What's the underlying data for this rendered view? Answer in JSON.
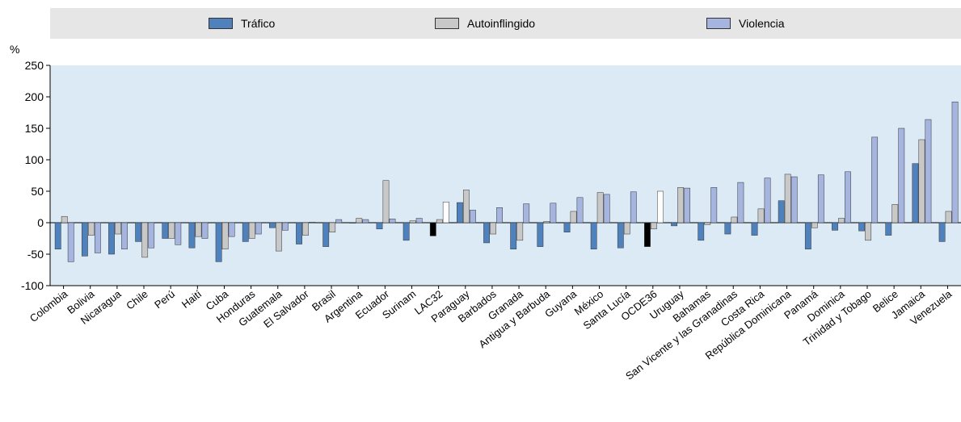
{
  "chart_data": {
    "type": "bar",
    "ylabel": "%",
    "ylim": [
      -100,
      250
    ],
    "yticks": [
      -100,
      -50,
      0,
      50,
      100,
      150,
      200,
      250
    ],
    "legend_position": "top",
    "grid": false,
    "categories": [
      "Colombia",
      "Bolivia",
      "Nicaragua",
      "Chile",
      "Perú",
      "Haití",
      "Cuba",
      "Honduras",
      "Guatemala",
      "El Salvador",
      "Brasil",
      "Argentina",
      "Ecuador",
      "Surinam",
      "LAC32",
      "Paraguay",
      "Barbados",
      "Granada",
      "Antigua y Barbuda",
      "Guyana",
      "México",
      "Santa Lucía",
      "OCDE36",
      "Uruguay",
      "Bahamas",
      "San Vicente y las Granadinas",
      "Costa Rica",
      "República Dominicana",
      "Panamá",
      "Dominica",
      "Trinidad y Tobago",
      "Belice",
      "Jamaica",
      "Venezuela"
    ],
    "series": [
      {
        "name": "Tráfico",
        "color": "#4f81bd",
        "values": [
          -42,
          -53,
          -50,
          -30,
          -25,
          -40,
          -62,
          -30,
          -8,
          -34,
          -38,
          0,
          -10,
          -28,
          -21,
          32,
          -32,
          -42,
          -38,
          -15,
          -42,
          -40,
          -38,
          -5,
          -28,
          -18,
          -20,
          35,
          -42,
          -12,
          -13,
          -20,
          94,
          -30
        ]
      },
      {
        "name": "Autoinflingido",
        "color": "#c8c8c8",
        "values": [
          10,
          -20,
          -18,
          -55,
          -25,
          -22,
          -42,
          -25,
          -45,
          -20,
          -15,
          7,
          67,
          3,
          5,
          52,
          -18,
          -28,
          2,
          18,
          48,
          -18,
          -10,
          56,
          -3,
          9,
          22,
          77,
          -8,
          7,
          -28,
          29,
          132,
          18
        ]
      },
      {
        "name": "Violencia",
        "color": "#a6b4e0",
        "values": [
          -62,
          -48,
          -42,
          -40,
          -35,
          -25,
          -22,
          -18,
          -12,
          1,
          5,
          5,
          6,
          7,
          33,
          20,
          24,
          30,
          31,
          40,
          45,
          49,
          50,
          55,
          56,
          64,
          71,
          73,
          76,
          81,
          136,
          150,
          164,
          192
        ]
      }
    ]
  }
}
